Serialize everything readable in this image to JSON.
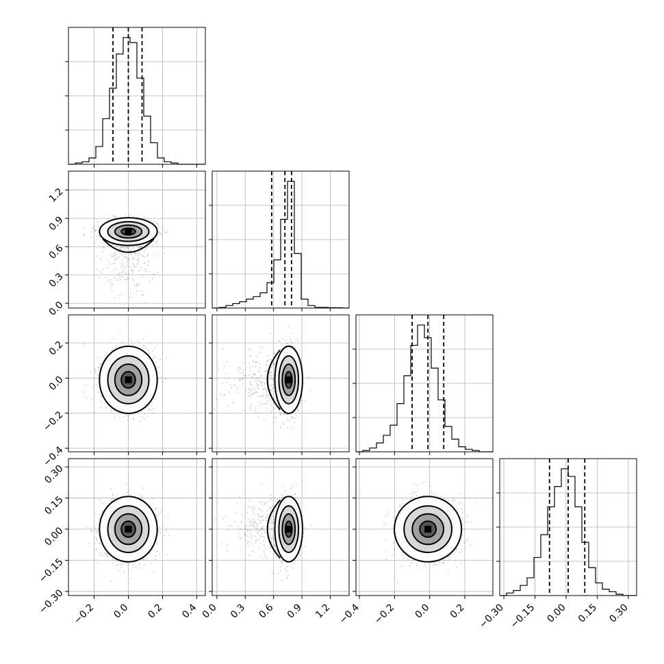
{
  "chart_data": {
    "type": "scatter",
    "variant": "corner-plot",
    "title": "",
    "grid": true,
    "parameters": [
      {
        "index": 0,
        "range": [
          -0.35,
          0.45
        ],
        "mean": 0.0,
        "sd": 0.075,
        "quantiles": [
          -0.09,
          0.0,
          0.08
        ],
        "ticks": [
          -0.2,
          0.0,
          0.2,
          0.4
        ],
        "tick_labels": [
          "−0.2",
          "0.0",
          "0.2",
          "0.4"
        ]
      },
      {
        "index": 1,
        "range": [
          -0.05,
          1.4
        ],
        "mean": 0.7,
        "sd": 0.13,
        "quantiles": [
          0.58,
          0.72,
          0.79
        ],
        "ticks": [
          0.0,
          0.3,
          0.6,
          0.9,
          1.2
        ],
        "tick_labels": [
          "0.0",
          "0.3",
          "0.6",
          "0.9",
          "1.2"
        ]
      },
      {
        "index": 2,
        "range": [
          -0.42,
          0.36
        ],
        "mean": -0.01,
        "sd": 0.085,
        "quantiles": [
          -0.1,
          -0.01,
          0.08
        ],
        "ticks": [
          -0.4,
          -0.2,
          0.0,
          0.2
        ],
        "tick_labels": [
          "−0.4",
          "−0.2",
          "0.0",
          "0.2"
        ]
      },
      {
        "index": 3,
        "range": [
          -0.32,
          0.34
        ],
        "mean": 0.0,
        "sd": 0.07,
        "quantiles": [
          -0.08,
          0.01,
          0.09
        ],
        "ticks": [
          -0.3,
          -0.15,
          0.0,
          0.15,
          0.3
        ],
        "tick_labels": [
          "−0.30",
          "−0.15",
          "0.00",
          "0.15",
          "0.30"
        ]
      }
    ],
    "histograms": [
      {
        "param": 0,
        "bin_edges_start": -0.35,
        "bin_width": 0.04,
        "heights": [
          0,
          0.01,
          0.02,
          0.05,
          0.14,
          0.36,
          0.6,
          0.87,
          1.0,
          0.96,
          0.68,
          0.38,
          0.17,
          0.05,
          0.02,
          0.01,
          0,
          0,
          0,
          0
        ]
      },
      {
        "param": 1,
        "bin_edges_start": -0.05,
        "bin_width": 0.0725,
        "heights": [
          0,
          0.005,
          0.02,
          0.035,
          0.05,
          0.07,
          0.09,
          0.12,
          0.2,
          0.38,
          0.7,
          1.0,
          0.43,
          0.07,
          0.02,
          0.005,
          0.005,
          0.003,
          0.002,
          0
        ]
      },
      {
        "param": 2,
        "bin_edges_start": -0.42,
        "bin_width": 0.039,
        "heights": [
          0,
          0.01,
          0.03,
          0.07,
          0.13,
          0.21,
          0.38,
          0.6,
          0.84,
          1.0,
          0.9,
          0.66,
          0.41,
          0.2,
          0.1,
          0.04,
          0.02,
          0.01,
          0,
          0
        ]
      },
      {
        "param": 3,
        "bin_edges_start": -0.32,
        "bin_width": 0.033,
        "heights": [
          0,
          0.02,
          0.04,
          0.08,
          0.14,
          0.3,
          0.48,
          0.7,
          0.86,
          1.0,
          0.94,
          0.7,
          0.42,
          0.22,
          0.1,
          0.05,
          0.03,
          0.01,
          0,
          0
        ]
      }
    ],
    "pairs": [
      {
        "x": 0,
        "y": 1,
        "note": "y concentrated near 0.75 with tail to 0.0"
      },
      {
        "x": 0,
        "y": 2
      },
      {
        "x": 1,
        "y": 2
      },
      {
        "x": 0,
        "y": 3
      },
      {
        "x": 1,
        "y": 3
      },
      {
        "x": 2,
        "y": 3
      }
    ]
  }
}
